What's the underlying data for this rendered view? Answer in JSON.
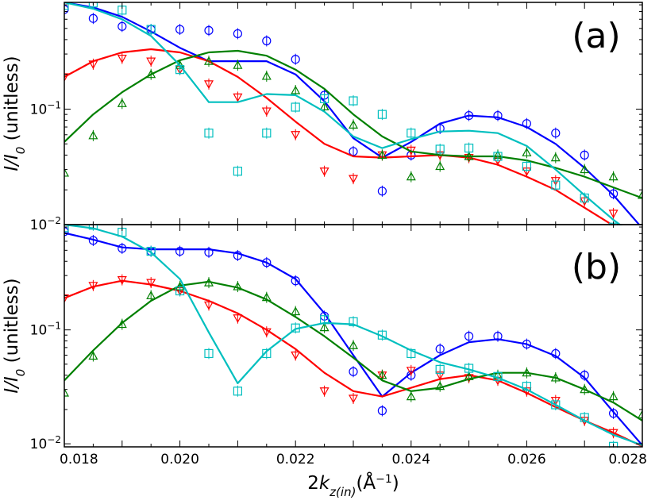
{
  "chart_data": [
    {
      "type": "scatter",
      "panel_label": "(a)",
      "ylabel": "I/I_0 (unitless)",
      "xlabel": "",
      "xlim": [
        0.018,
        0.028
      ],
      "ylim": [
        0.01,
        0.84
      ],
      "yscale": "log",
      "y_ticks": [
        {
          "value": 0.01,
          "label": "10^-2"
        },
        {
          "value": 0.1,
          "label": "10^-1"
        }
      ],
      "x_ticks": [],
      "legend": "none",
      "series": [
        {
          "color": "#0000ff",
          "marker": "circle",
          "points": {
            "x": [
              0.018,
              0.0185,
              0.019,
              0.0195,
              0.02,
              0.0205,
              0.021,
              0.0215,
              0.022,
              0.0225,
              0.023,
              0.0235,
              0.024,
              0.0245,
              0.025,
              0.0255,
              0.026,
              0.0265,
              0.027,
              0.0275
            ],
            "y": [
              0.73,
              0.61,
              0.52,
              0.49,
              0.49,
              0.48,
              0.45,
              0.39,
              0.27,
              0.132,
              0.043,
              0.0195,
              0.04,
              0.068,
              0.088,
              0.088,
              0.075,
              0.062,
              0.04,
              0.0185
            ]
          },
          "fit": {
            "x": [
              0.018,
              0.0185,
              0.019,
              0.0195,
              0.02,
              0.0205,
              0.021,
              0.0215,
              0.022,
              0.0225,
              0.023,
              0.0235,
              0.024,
              0.0245,
              0.025,
              0.0255,
              0.026,
              0.0265,
              0.027,
              0.0275,
              0.028
            ],
            "y": [
              0.84,
              0.76,
              0.63,
              0.47,
              0.34,
              0.26,
              0.26,
              0.26,
              0.2,
              0.117,
              0.056,
              0.038,
              0.052,
              0.075,
              0.088,
              0.085,
              0.07,
              0.05,
              0.031,
              0.018,
              0.0093
            ]
          }
        },
        {
          "color": "#ff0000",
          "marker": "triangle-down",
          "points": {
            "x": [
              0.018,
              0.0185,
              0.019,
              0.0195,
              0.02,
              0.0205,
              0.021,
              0.0215,
              0.022,
              0.0225,
              0.023,
              0.0235,
              0.024,
              0.0245,
              0.025,
              0.0255,
              0.026,
              0.0265,
              0.027,
              0.0275
            ],
            "y": [
              0.19,
              0.245,
              0.275,
              0.26,
              0.22,
              0.165,
              0.127,
              0.096,
              0.06,
              0.029,
              0.025,
              0.04,
              0.044,
              0.04,
              0.038,
              0.036,
              0.029,
              0.024,
              0.016,
              0.0125
            ]
          },
          "fit": {
            "x": [
              0.018,
              0.0185,
              0.019,
              0.0195,
              0.02,
              0.0205,
              0.021,
              0.0215,
              0.022,
              0.0225,
              0.023,
              0.0235,
              0.024,
              0.0245,
              0.025,
              0.0255,
              0.026,
              0.0265,
              0.027,
              0.0275,
              0.028
            ],
            "y": [
              0.19,
              0.26,
              0.31,
              0.33,
              0.31,
              0.26,
              0.19,
              0.125,
              0.078,
              0.05,
              0.039,
              0.038,
              0.039,
              0.04,
              0.038,
              0.033,
              0.026,
              0.02,
              0.014,
              0.0098,
              0.0075
            ]
          }
        },
        {
          "color": "#008000",
          "marker": "triangle-up",
          "points": {
            "x": [
              0.018,
              0.0185,
              0.019,
              0.0195,
              0.02,
              0.0205,
              0.021,
              0.0215,
              0.022,
              0.0225,
              0.023,
              0.0235,
              0.024,
              0.0245,
              0.025,
              0.0255,
              0.026,
              0.0265,
              0.027,
              0.0275,
              0.028
            ],
            "y": [
              0.028,
              0.059,
              0.112,
              0.2,
              0.24,
              0.26,
              0.24,
              0.193,
              0.145,
              0.105,
              0.073,
              0.04,
              0.026,
              0.032,
              0.039,
              0.04,
              0.042,
              0.038,
              0.03,
              0.026,
              0.018
            ]
          },
          "fit": {
            "x": [
              0.018,
              0.0185,
              0.019,
              0.0195,
              0.02,
              0.0205,
              0.021,
              0.0215,
              0.022,
              0.0225,
              0.023,
              0.0235,
              0.024,
              0.0245,
              0.025,
              0.0255,
              0.026,
              0.0265,
              0.027,
              0.0275,
              0.028
            ],
            "y": [
              0.052,
              0.09,
              0.14,
              0.2,
              0.265,
              0.31,
              0.32,
              0.29,
              0.22,
              0.15,
              0.09,
              0.058,
              0.043,
              0.04,
              0.039,
              0.039,
              0.036,
              0.031,
              0.026,
              0.021,
              0.017
            ]
          }
        },
        {
          "color": "#00bfbf",
          "marker": "square",
          "points": {
            "x": [
              0.018,
              0.0185,
              0.019,
              0.0195,
              0.02,
              0.0205,
              0.021,
              0.0215,
              0.022,
              0.0225,
              0.023,
              0.0235,
              0.024,
              0.0245,
              0.025,
              0.0255,
              0.026,
              0.0265,
              0.027,
              0.0275
            ],
            "y": [
              0.79,
              0.83,
              0.72,
              0.49,
              0.22,
              0.062,
              0.029,
              0.062,
              0.104,
              0.123,
              0.118,
              0.09,
              0.062,
              0.045,
              0.046,
              0.039,
              0.032,
              0.022,
              0.017,
              0.0095
            ]
          },
          "fit": {
            "x": [
              0.018,
              0.0185,
              0.019,
              0.0195,
              0.02,
              0.0205,
              0.021,
              0.0215,
              0.022,
              0.0225,
              0.023,
              0.0235,
              0.024,
              0.0245,
              0.025,
              0.0255,
              0.026,
              0.0265,
              0.027,
              0.0275,
              0.028
            ],
            "y": [
              0.84,
              0.74,
              0.6,
              0.43,
              0.24,
              0.115,
              0.115,
              0.135,
              0.132,
              0.095,
              0.058,
              0.046,
              0.055,
              0.064,
              0.065,
              0.062,
              0.048,
              0.03,
              0.018,
              0.011,
              0.0072
            ]
          }
        }
      ]
    },
    {
      "type": "scatter",
      "panel_label": "(b)",
      "ylabel": "I/I_0 (unitless)",
      "xlabel": "2k_z(in)(Å^-1)",
      "xlim": [
        0.018,
        0.028
      ],
      "ylim": [
        0.0094,
        0.84
      ],
      "yscale": "log",
      "y_ticks": [
        {
          "value": 0.01,
          "label": "10^-2"
        },
        {
          "value": 0.1,
          "label": "10^-1"
        }
      ],
      "x_ticks": [
        {
          "value": 0.018,
          "label": "0.018"
        },
        {
          "value": 0.02,
          "label": "0.020"
        },
        {
          "value": 0.022,
          "label": "0.022"
        },
        {
          "value": 0.024,
          "label": "0.024"
        },
        {
          "value": 0.026,
          "label": "0.026"
        },
        {
          "value": 0.028,
          "label": "0.028"
        }
      ],
      "legend": "none",
      "series": [
        {
          "color": "#0000ff",
          "marker": "circle",
          "points": {
            "x": [
              0.018,
              0.0185,
              0.019,
              0.0195,
              0.02,
              0.0205,
              0.021,
              0.0215,
              0.022,
              0.0225,
              0.023,
              0.0235,
              0.024,
              0.0245,
              0.025,
              0.0255,
              0.026,
              0.0265,
              0.027,
              0.0275
            ],
            "y": [
              0.73,
              0.61,
              0.52,
              0.49,
              0.49,
              0.48,
              0.45,
              0.39,
              0.27,
              0.132,
              0.043,
              0.0195,
              0.04,
              0.068,
              0.088,
              0.088,
              0.075,
              0.062,
              0.04,
              0.0185
            ]
          },
          "fit": {
            "x": [
              0.018,
              0.0185,
              0.019,
              0.0195,
              0.02,
              0.0205,
              0.021,
              0.0215,
              0.022,
              0.0225,
              0.023,
              0.0235,
              0.024,
              0.0245,
              0.025,
              0.0255,
              0.026,
              0.0265,
              0.027,
              0.0275,
              0.028
            ],
            "y": [
              0.71,
              0.62,
              0.53,
              0.51,
              0.51,
              0.51,
              0.47,
              0.39,
              0.28,
              0.14,
              0.06,
              0.026,
              0.042,
              0.06,
              0.078,
              0.083,
              0.075,
              0.059,
              0.038,
              0.019,
              0.0097
            ]
          }
        },
        {
          "color": "#ff0000",
          "marker": "triangle-down",
          "points": {
            "x": [
              0.018,
              0.0185,
              0.019,
              0.0195,
              0.02,
              0.0205,
              0.021,
              0.0215,
              0.022,
              0.0225,
              0.023,
              0.0235,
              0.024,
              0.0245,
              0.025,
              0.0255,
              0.026,
              0.0265,
              0.027,
              0.0275
            ],
            "y": [
              0.19,
              0.245,
              0.275,
              0.26,
              0.22,
              0.165,
              0.127,
              0.096,
              0.06,
              0.029,
              0.025,
              0.04,
              0.044,
              0.04,
              0.038,
              0.036,
              0.029,
              0.024,
              0.016,
              0.0125
            ]
          },
          "fit": {
            "x": [
              0.018,
              0.0185,
              0.019,
              0.0195,
              0.02,
              0.0205,
              0.021,
              0.0215,
              0.022,
              0.0225,
              0.023,
              0.0235,
              0.024,
              0.0245,
              0.025,
              0.0255,
              0.026,
              0.0265,
              0.027,
              0.0275,
              0.028
            ],
            "y": [
              0.19,
              0.24,
              0.27,
              0.25,
              0.22,
              0.18,
              0.14,
              0.1,
              0.068,
              0.042,
              0.029,
              0.026,
              0.031,
              0.037,
              0.04,
              0.036,
              0.028,
              0.021,
              0.016,
              0.0125,
              0.0095
            ]
          }
        },
        {
          "color": "#008000",
          "marker": "triangle-up",
          "points": {
            "x": [
              0.018,
              0.0185,
              0.019,
              0.0195,
              0.02,
              0.0205,
              0.021,
              0.0215,
              0.022,
              0.0225,
              0.023,
              0.0235,
              0.024,
              0.0245,
              0.025,
              0.0255,
              0.026,
              0.0265,
              0.027,
              0.0275,
              0.028
            ],
            "y": [
              0.028,
              0.059,
              0.112,
              0.2,
              0.24,
              0.26,
              0.24,
              0.193,
              0.145,
              0.105,
              0.073,
              0.04,
              0.026,
              0.032,
              0.039,
              0.04,
              0.042,
              0.038,
              0.03,
              0.026,
              0.018
            ]
          },
          "fit": {
            "x": [
              0.018,
              0.0185,
              0.019,
              0.0195,
              0.02,
              0.0205,
              0.021,
              0.0215,
              0.022,
              0.0225,
              0.023,
              0.0235,
              0.024,
              0.0245,
              0.025,
              0.0255,
              0.026,
              0.0265,
              0.027,
              0.0275,
              0.028
            ],
            "y": [
              0.036,
              0.066,
              0.115,
              0.18,
              0.245,
              0.265,
              0.235,
              0.185,
              0.13,
              0.088,
              0.057,
              0.036,
              0.029,
              0.031,
              0.037,
              0.042,
              0.042,
              0.038,
              0.03,
              0.023,
              0.016
            ]
          }
        },
        {
          "color": "#00bfbf",
          "marker": "square",
          "points": {
            "x": [
              0.018,
              0.0185,
              0.019,
              0.0195,
              0.02,
              0.0205,
              0.021,
              0.0215,
              0.022,
              0.0225,
              0.023,
              0.0235,
              0.024,
              0.0245,
              0.025,
              0.0255,
              0.026,
              0.0265,
              0.027,
              0.0275
            ],
            "y": [
              0.79,
              0.83,
              0.72,
              0.49,
              0.22,
              0.062,
              0.029,
              0.062,
              0.104,
              0.123,
              0.118,
              0.09,
              0.062,
              0.045,
              0.046,
              0.039,
              0.032,
              0.022,
              0.017,
              0.0095
            ]
          },
          "fit": {
            "x": [
              0.018,
              0.0185,
              0.019,
              0.0195,
              0.02,
              0.0205,
              0.021,
              0.0215,
              0.022,
              0.0225,
              0.023,
              0.0235,
              0.024,
              0.0245,
              0.025,
              0.0255,
              0.026,
              0.0265,
              0.027,
              0.0275,
              0.028
            ],
            "y": [
              0.84,
              0.78,
              0.66,
              0.48,
              0.28,
              0.095,
              0.034,
              0.065,
              0.102,
              0.115,
              0.112,
              0.088,
              0.066,
              0.052,
              0.045,
              0.038,
              0.03,
              0.022,
              0.016,
              0.012,
              0.0097
            ]
          }
        }
      ]
    }
  ]
}
